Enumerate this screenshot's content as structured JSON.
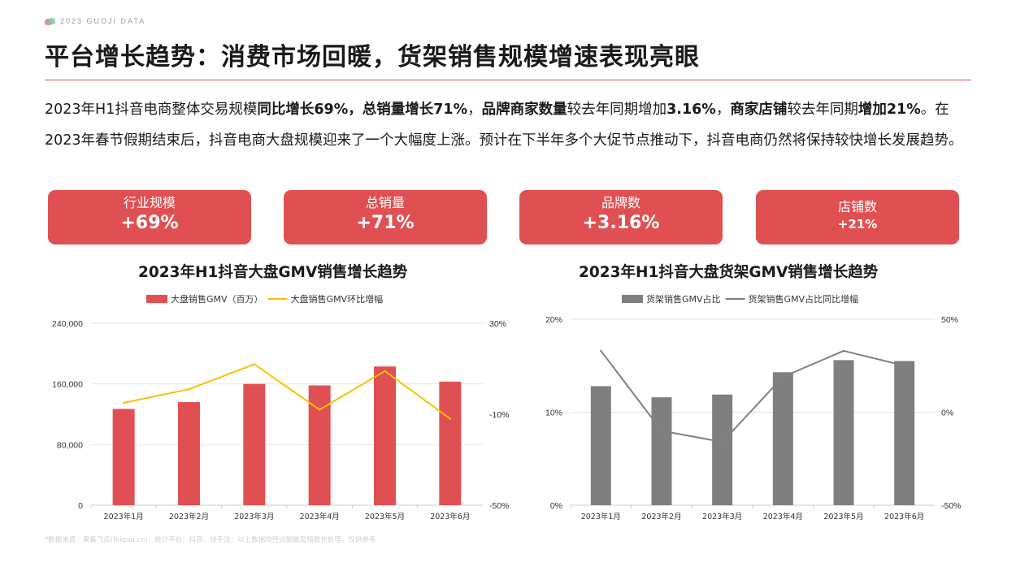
{
  "header": {
    "brand": "2023  GUOJI DATA",
    "title": "平台增长趋势：消费市场回暖，货架销售规模增速表现亮眼"
  },
  "summary": {
    "s1": "2023年H1抖音电商整体交易规模",
    "b1": "同比增长69%，总销量增长71%",
    "s2": "，",
    "b2": "品牌商家数量",
    "s3": "较去年同期增加",
    "b3": "3.16%",
    "s4": "，",
    "b4": "商家店铺",
    "s5": "较去年同期",
    "b5": "增加21%",
    "s6": "。在2023年春节假期结束后，抖音电商大盘规模迎来了一个大幅度上涨。预计在下半年多个大促节点推动下，抖音电商仍然将保持较快增长发展趋势。"
  },
  "kpis": [
    {
      "label": "行业规模",
      "value": "+69%"
    },
    {
      "label": "总销量",
      "value": "+71%"
    },
    {
      "label": "品牌数",
      "value": "+3.16%"
    },
    {
      "label": "店铺数",
      "value": "+21%"
    }
  ],
  "colors": {
    "bar_red": "#e05052",
    "line_yellow": "#f5c200",
    "bar_gray": "#7f7f7f",
    "line_gray": "#808080",
    "grid": "#e6e6e6",
    "axis_text": "#333333"
  },
  "chart_data": [
    {
      "type": "bar",
      "title": "2023年H1抖音大盘GMV销售增长趋势",
      "categories": [
        "2023年1月",
        "2023年2月",
        "2023年3月",
        "2023年4月",
        "2023年5月",
        "2023年6月"
      ],
      "series": [
        {
          "name": "大盘销售GMV（百万）",
          "type": "bar",
          "axis": "left",
          "values": [
            127000,
            136000,
            160000,
            158000,
            183000,
            163000
          ]
        },
        {
          "name": "大盘销售GMV环比增幅",
          "type": "line",
          "axis": "right",
          "values": [
            -5,
            1,
            12,
            -8,
            9,
            -12
          ]
        }
      ],
      "y_left": {
        "min": 0,
        "max": 240000,
        "ticks": [
          "0",
          "80,000",
          "160,000",
          "240,000"
        ]
      },
      "y_right": {
        "min": -50,
        "max": 30,
        "ticks": [
          "-50%",
          "-10%",
          "30%"
        ]
      },
      "grid": true,
      "legend": "top"
    },
    {
      "type": "bar",
      "title": "2023年H1抖音大盘货架GMV销售增长趋势",
      "categories": [
        "2023年1月",
        "2023年2月",
        "2023年3月",
        "2023年4月",
        "2023年5月",
        "2023年6月"
      ],
      "series": [
        {
          "name": "货架销售GMV占比",
          "type": "bar",
          "axis": "left",
          "values": [
            12.8,
            11.6,
            11.9,
            14.3,
            15.6,
            15.5
          ]
        },
        {
          "name": "货架销售GMV占比同比增幅",
          "type": "line",
          "axis": "right",
          "values": [
            33,
            -10,
            -16,
            19,
            33,
            25
          ]
        }
      ],
      "y_left": {
        "min": 0,
        "max": 20,
        "ticks": [
          "0%",
          "10%",
          "20%"
        ]
      },
      "y_right": {
        "min": -50,
        "max": 50,
        "ticks": [
          "-50%",
          "0%",
          "50%"
        ]
      },
      "grid": true,
      "legend": "top"
    }
  ],
  "footnote": "*数据来源：果集飞瓜(feigua.cn)，统计平台：抖音、快手注：以上数据均经过脱敏及指数化处理，仅供参考"
}
